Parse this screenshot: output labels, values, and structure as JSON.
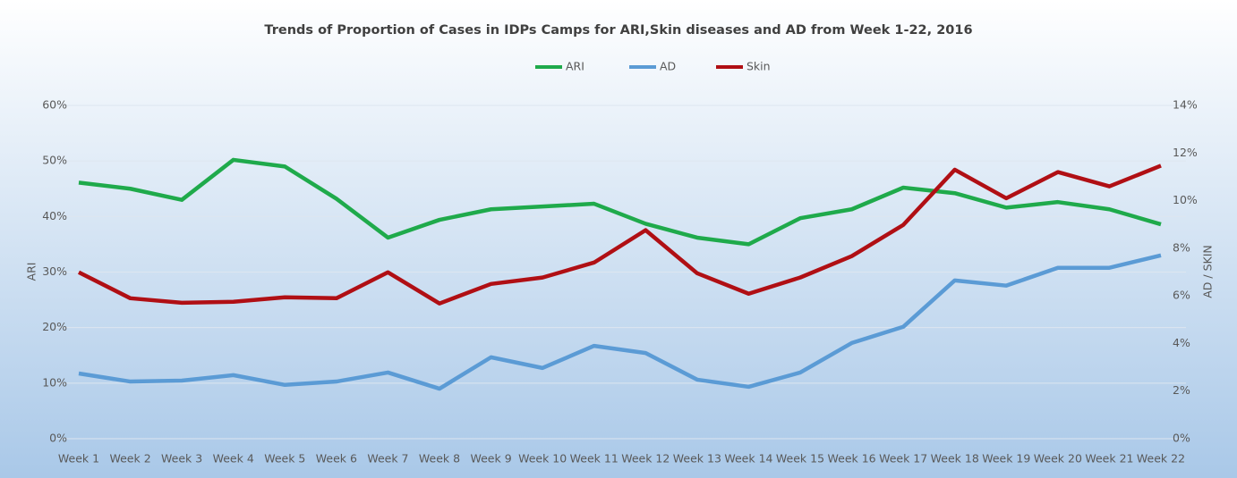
{
  "chart_data": {
    "type": "line",
    "title": "Trends of Proportion of Cases in IDPs Camps for ARI,Skin diseases and AD from Week 1-22, 2016",
    "y_label": "ARI",
    "y2_label": "AD / SKIN",
    "legend": "top",
    "grid": true,
    "categories": [
      "Week 1",
      "Week 2",
      "Week 3",
      "Week 4",
      "Week 5",
      "Week 6",
      "Week 7",
      "Week 8",
      "Week 9",
      "Week 10",
      "Week 11",
      "Week 12",
      "Week 13",
      "Week 14",
      "Week 15",
      "Week 16",
      "Week 17",
      "Week 18",
      "Week 19",
      "Week 20",
      "Week 21",
      "Week 22"
    ],
    "ylim": [
      0,
      60
    ],
    "yticks": [
      {
        "value": 0,
        "label": "0%"
      },
      {
        "value": 10,
        "label": "10%"
      },
      {
        "value": 20,
        "label": "20%"
      },
      {
        "value": 30,
        "label": "30%"
      },
      {
        "value": 40,
        "label": "40%"
      },
      {
        "value": 50,
        "label": "50%"
      },
      {
        "value": 60,
        "label": "60%"
      }
    ],
    "y2lim": [
      0,
      14
    ],
    "y2ticks": [
      {
        "value": 0,
        "label": "0%"
      },
      {
        "value": 2,
        "label": "2%"
      },
      {
        "value": 4,
        "label": "4%"
      },
      {
        "value": 6,
        "label": "6%"
      },
      {
        "value": 8,
        "label": "8%"
      },
      {
        "value": 10,
        "label": "10%"
      },
      {
        "value": 12,
        "label": "12%"
      },
      {
        "value": 14,
        "label": "14%"
      }
    ],
    "series": [
      {
        "name": "ARI",
        "color": "#1faa4b",
        "values": [
          46.1,
          45,
          43,
          50.2,
          49,
          43.2,
          36.2,
          39.4,
          41.3,
          41.8,
          42.3,
          38.7,
          36.2,
          35,
          39.7,
          41.3,
          45.2,
          44.2,
          41.6,
          42.6,
          41.3,
          38.6
        ]
      },
      {
        "name": "AD",
        "color": "#5b9bd5",
        "axis": "y2",
        "values": [
          2.74,
          2.4,
          2.44,
          2.67,
          2.26,
          2.4,
          2.78,
          2.1,
          3.42,
          2.97,
          3.9,
          3.6,
          2.48,
          2.18,
          2.78,
          4.02,
          4.7,
          6.65,
          6.43,
          7.18,
          7.18,
          7.7
        ]
      },
      {
        "name": "Skin",
        "color": "#b00f14",
        "axis": "y2",
        "values": [
          6.99,
          5.9,
          5.71,
          5.75,
          5.94,
          5.9,
          6.99,
          5.68,
          6.5,
          6.77,
          7.4,
          8.76,
          6.95,
          6.09,
          6.77,
          7.67,
          8.98,
          11.3,
          10.1,
          11.2,
          10.6,
          11.47
        ]
      }
    ]
  }
}
